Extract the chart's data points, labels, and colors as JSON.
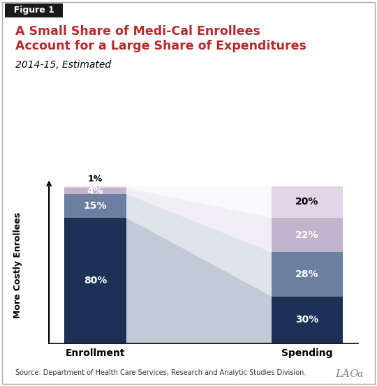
{
  "title_figure": "Figure 1",
  "title_main": "A Small Share of Medi-Cal Enrollees\nAccount for a Large Share of Expenditures",
  "subtitle": "2014-15, Estimated",
  "source": "Source: Department of Health Care Services, Research and Analytic Studies Division.",
  "lao_text": "LAOα",
  "ylabel": "More Costly Enrollees",
  "xlabel_left": "Enrollment",
  "xlabel_right": "Spending",
  "enrollment": [
    80,
    15,
    4,
    1
  ],
  "spending": [
    30,
    28,
    22,
    20
  ],
  "enrollment_labels": [
    "80%",
    "15%",
    "4%",
    "1%"
  ],
  "spending_labels": [
    "30%",
    "28%",
    "22%",
    "20%"
  ],
  "colors": [
    "#1c3155",
    "#6d7fa0",
    "#c2b4cc",
    "#e2d5e8"
  ],
  "trap_colors": [
    "#9aa8bf",
    "#c0c8d6",
    "#d8d2e4",
    "#ece8f2"
  ],
  "trap_alphas": [
    0.6,
    0.5,
    0.35,
    0.25
  ],
  "title_color": "#b52a2a",
  "figure_label_bg": "#1a1a1a",
  "background_color": "#ffffff",
  "enroll_label_colors": [
    "white",
    "white",
    "white",
    "black"
  ],
  "spend_label_colors": [
    "white",
    "white",
    "white",
    "black"
  ]
}
